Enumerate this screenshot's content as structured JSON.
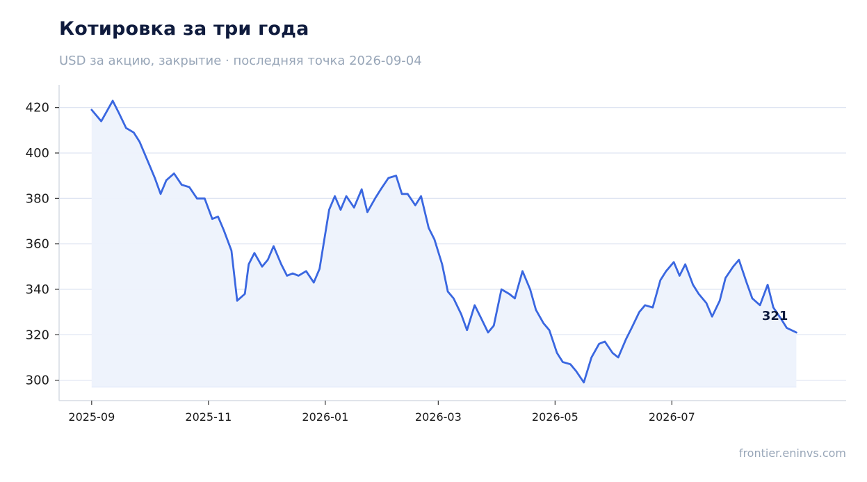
{
  "header": {
    "title": "Котировка за три года",
    "subtitle": "USD за акцию, закрытие · последняя точка 2026-09-04"
  },
  "footer": {
    "source": "frontier.eninvs.com"
  },
  "colors": {
    "line": "#3a67e0",
    "area": "#edf2fc",
    "grid": "#dfe5f2",
    "axis": "#d6dbe4"
  },
  "chart_data": {
    "type": "area",
    "title": "Котировка за три года",
    "subtitle": "USD за акцию, закрытие · последняя точка 2026-09-04",
    "xlabel": "",
    "ylabel": "",
    "ylim": [
      291,
      430
    ],
    "xlim": [
      "2025-08-15",
      "2026-09-30"
    ],
    "grid": true,
    "legend": "none",
    "x_ticks": [
      "2025-09",
      "2025-11",
      "2026-01",
      "2026-03",
      "2026-05",
      "2026-07"
    ],
    "y_ticks": [
      300,
      320,
      340,
      360,
      380,
      400,
      420
    ],
    "end_label": "321",
    "series": [
      {
        "x": [
          "2025-09-01",
          "2025-09-06",
          "2025-09-12",
          "2025-09-15",
          "2025-09-19",
          "2025-09-23",
          "2025-09-26",
          "2025-10-01",
          "2025-10-04",
          "2025-10-07",
          "2025-10-10",
          "2025-10-14",
          "2025-10-18",
          "2025-10-22",
          "2025-10-26",
          "2025-10-30",
          "2025-11-03",
          "2025-11-06",
          "2025-11-09",
          "2025-11-13",
          "2025-11-16",
          "2025-11-20",
          "2025-11-22",
          "2025-11-25",
          "2025-11-29",
          "2025-12-02",
          "2025-12-05",
          "2025-12-09",
          "2025-12-12",
          "2025-12-15",
          "2025-12-18",
          "2025-12-22",
          "2025-12-26",
          "2025-12-29",
          "2026-01-03",
          "2026-01-06",
          "2026-01-09",
          "2026-01-12",
          "2026-01-16",
          "2026-01-20",
          "2026-01-23",
          "2026-01-27",
          "2026-01-30",
          "2026-02-03",
          "2026-02-07",
          "2026-02-10",
          "2026-02-13",
          "2026-02-17",
          "2026-02-20",
          "2026-02-24",
          "2026-02-27",
          "2026-03-03",
          "2026-03-06",
          "2026-03-09",
          "2026-03-13",
          "2026-03-16",
          "2026-03-20",
          "2026-03-23",
          "2026-03-27",
          "2026-03-30",
          "2026-04-03",
          "2026-04-07",
          "2026-04-10",
          "2026-04-14",
          "2026-04-18",
          "2026-04-21",
          "2026-04-25",
          "2026-04-28",
          "2026-05-02",
          "2026-05-05",
          "2026-05-09",
          "2026-05-12",
          "2026-05-16",
          "2026-05-20",
          "2026-05-24",
          "2026-05-27",
          "2026-05-31",
          "2026-06-03",
          "2026-06-07",
          "2026-06-10",
          "2026-06-14",
          "2026-06-17",
          "2026-06-21",
          "2026-06-25",
          "2026-06-28",
          "2026-07-02",
          "2026-07-05",
          "2026-07-08",
          "2026-07-12",
          "2026-07-15",
          "2026-07-19",
          "2026-07-22",
          "2026-07-26",
          "2026-07-29",
          "2026-08-02",
          "2026-08-05",
          "2026-08-09",
          "2026-08-12",
          "2026-08-16",
          "2026-08-20",
          "2026-08-23",
          "2026-08-27",
          "2026-08-30",
          "2026-09-04"
        ],
        "values": [
          419,
          414,
          423,
          418,
          411,
          409,
          405,
          395,
          389,
          382,
          388,
          391,
          386,
          385,
          380,
          380,
          371,
          372,
          366,
          357,
          335,
          338,
          351,
          356,
          350,
          353,
          359,
          351,
          346,
          347,
          346,
          348,
          343,
          349,
          375,
          381,
          375,
          381,
          376,
          384,
          374,
          380,
          384,
          389,
          390,
          382,
          382,
          377,
          381,
          367,
          362,
          351,
          339,
          336,
          329,
          322,
          333,
          328,
          321,
          324,
          340,
          338,
          336,
          348,
          340,
          331,
          325,
          322,
          312,
          308,
          307,
          304,
          299,
          310,
          316,
          317,
          312,
          310,
          318,
          323,
          330,
          333,
          332,
          344,
          348,
          352,
          346,
          351,
          342,
          338,
          334,
          328,
          335,
          345,
          350,
          353,
          343,
          336,
          333,
          342,
          332,
          327,
          323,
          321
        ]
      }
    ]
  }
}
